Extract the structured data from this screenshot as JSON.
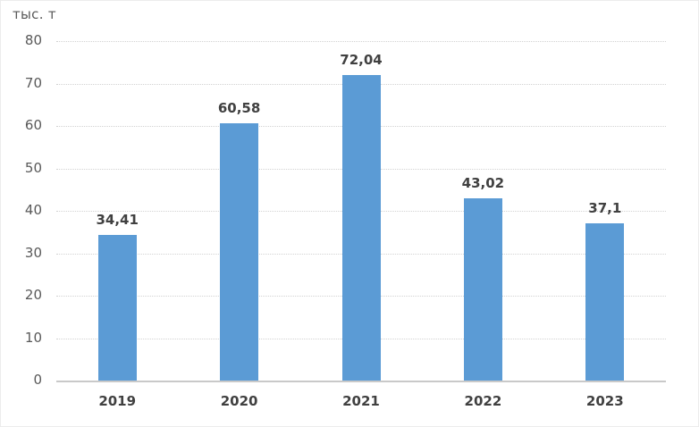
{
  "chart_data": {
    "type": "bar",
    "title": "",
    "ylabel": "тыс. т",
    "xlabel": "",
    "categories": [
      "2019",
      "2020",
      "2021",
      "2022",
      "2023"
    ],
    "values": [
      34.41,
      60.58,
      72.04,
      43.02,
      37.1
    ],
    "value_labels": [
      "34,41",
      "60,58",
      "72,04",
      "43,02",
      "37,1"
    ],
    "ylim": [
      0,
      80
    ],
    "yticks": [
      0,
      10,
      20,
      30,
      40,
      50,
      60,
      70,
      80
    ],
    "grid": true,
    "legend": "none",
    "colors": {
      "bar": "#5b9bd5",
      "data_label": "#404040",
      "category_label": "#404040",
      "ytick_label": "#595959",
      "unit_label": "#595959",
      "gridline": "#d2d2d2",
      "axis_line": "#c9c9c9"
    }
  }
}
